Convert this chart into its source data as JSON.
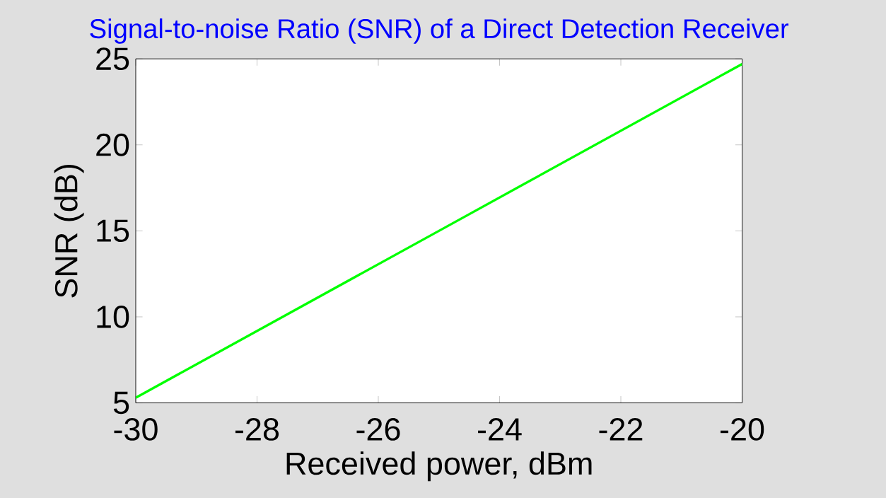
{
  "chart_data": {
    "type": "line",
    "title": "Signal-to-noise Ratio (SNR) of a Direct Detection Receiver",
    "xlabel": "Received power, dBm",
    "ylabel": "SNR (dB)",
    "x": [
      -30,
      -25,
      -20
    ],
    "series": [
      {
        "color": "#00ff00",
        "values": [
          5.3,
          15.0,
          24.7
        ]
      }
    ],
    "xlim": [
      -30,
      -20
    ],
    "ylim": [
      5,
      25
    ],
    "xticks": [
      -30,
      -28,
      -26,
      -24,
      -22,
      -20
    ],
    "yticks": [
      5,
      10,
      15,
      20,
      25
    ],
    "grid": false,
    "marker": "none",
    "line_style": "solid"
  }
}
